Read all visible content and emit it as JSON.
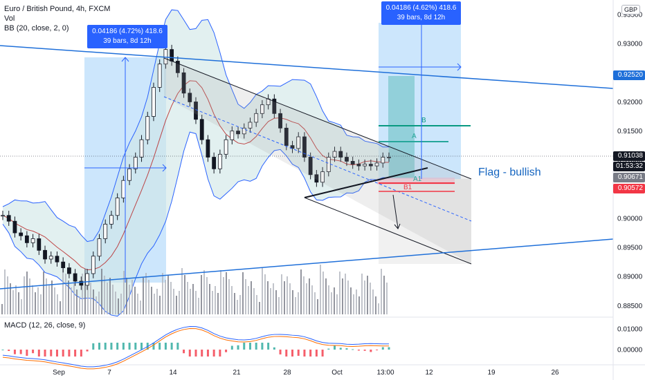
{
  "header": {
    "symbol_line": "Euro / British Pound, 4h, FXCM",
    "vol_label": "Vol",
    "bb_label": "BB (20, close, 2, 0)",
    "macd_label": "MACD (12, 26, close, 9)",
    "currency": "GBP"
  },
  "measures": [
    {
      "line1": "0.04186 (4.72%) 418.6",
      "line2": "39 bars, 8d 12h"
    },
    {
      "line1": "0.04186 (4.62%) 418.6",
      "line2": "39 bars, 8d 12h"
    }
  ],
  "annotations": {
    "flag": "Flag - bullish",
    "a": "A",
    "b": "B",
    "a1": "A1",
    "b1": "B1"
  },
  "price_labels": {
    "p1": "0.92520",
    "p2": "0.91038",
    "p3": "01:53:32",
    "p4": "0.90671",
    "p5": "0.90572"
  },
  "colors": {
    "blue_line": "#2962ff",
    "trend_blue": "#1e6fd9",
    "bb_fill": "#cfe6e6",
    "bb_line": "#2962ff",
    "measure_fill": "#bbdefb",
    "teal": "#26a69a",
    "green": "#089981",
    "red": "#f23645",
    "black": "#131722"
  },
  "chart_data": {
    "type": "line",
    "title": "Euro / British Pound, 4h, FXCM",
    "ylim": [
      0.8835,
      0.9375
    ],
    "yticks": [
      "0.93500",
      "0.93000",
      "0.92500",
      "0.92000",
      "0.91500",
      "0.91000",
      "0.90500",
      "0.90000",
      "0.89500",
      "0.89000",
      "0.88500"
    ],
    "ytick_values": [
      0.935,
      0.93,
      0.925,
      0.92,
      0.915,
      0.91,
      0.905,
      0.9,
      0.895,
      0.89,
      0.885
    ],
    "xticks": [
      "Sep",
      "7",
      "14",
      "21",
      "28",
      "Oct",
      "13:00",
      "12",
      "19",
      "26"
    ],
    "macd_yticks": [
      "0.01000",
      "0.00000"
    ],
    "series": [
      {
        "name": "close",
        "values": [
          0.9005,
          0.8995,
          0.8975,
          0.897,
          0.8958,
          0.8965,
          0.8945,
          0.893,
          0.8935,
          0.8925,
          0.8915,
          0.8905,
          0.8892,
          0.8885,
          0.8905,
          0.8935,
          0.8965,
          0.899,
          0.9005,
          0.9035,
          0.9065,
          0.9085,
          0.9105,
          0.9135,
          0.9175,
          0.9225,
          0.9265,
          0.929,
          0.927,
          0.925,
          0.9215,
          0.92,
          0.917,
          0.9135,
          0.9105,
          0.9085,
          0.911,
          0.9135,
          0.915,
          0.9145,
          0.9155,
          0.9165,
          0.918,
          0.9195,
          0.9205,
          0.918,
          0.9155,
          0.9125,
          0.912,
          0.914,
          0.9105,
          0.9075,
          0.9062,
          0.908,
          0.9105,
          0.9115,
          0.9105,
          0.9098,
          0.9093,
          0.909,
          0.9093,
          0.909,
          0.9095,
          0.9105,
          0.9105
        ]
      }
    ]
  }
}
